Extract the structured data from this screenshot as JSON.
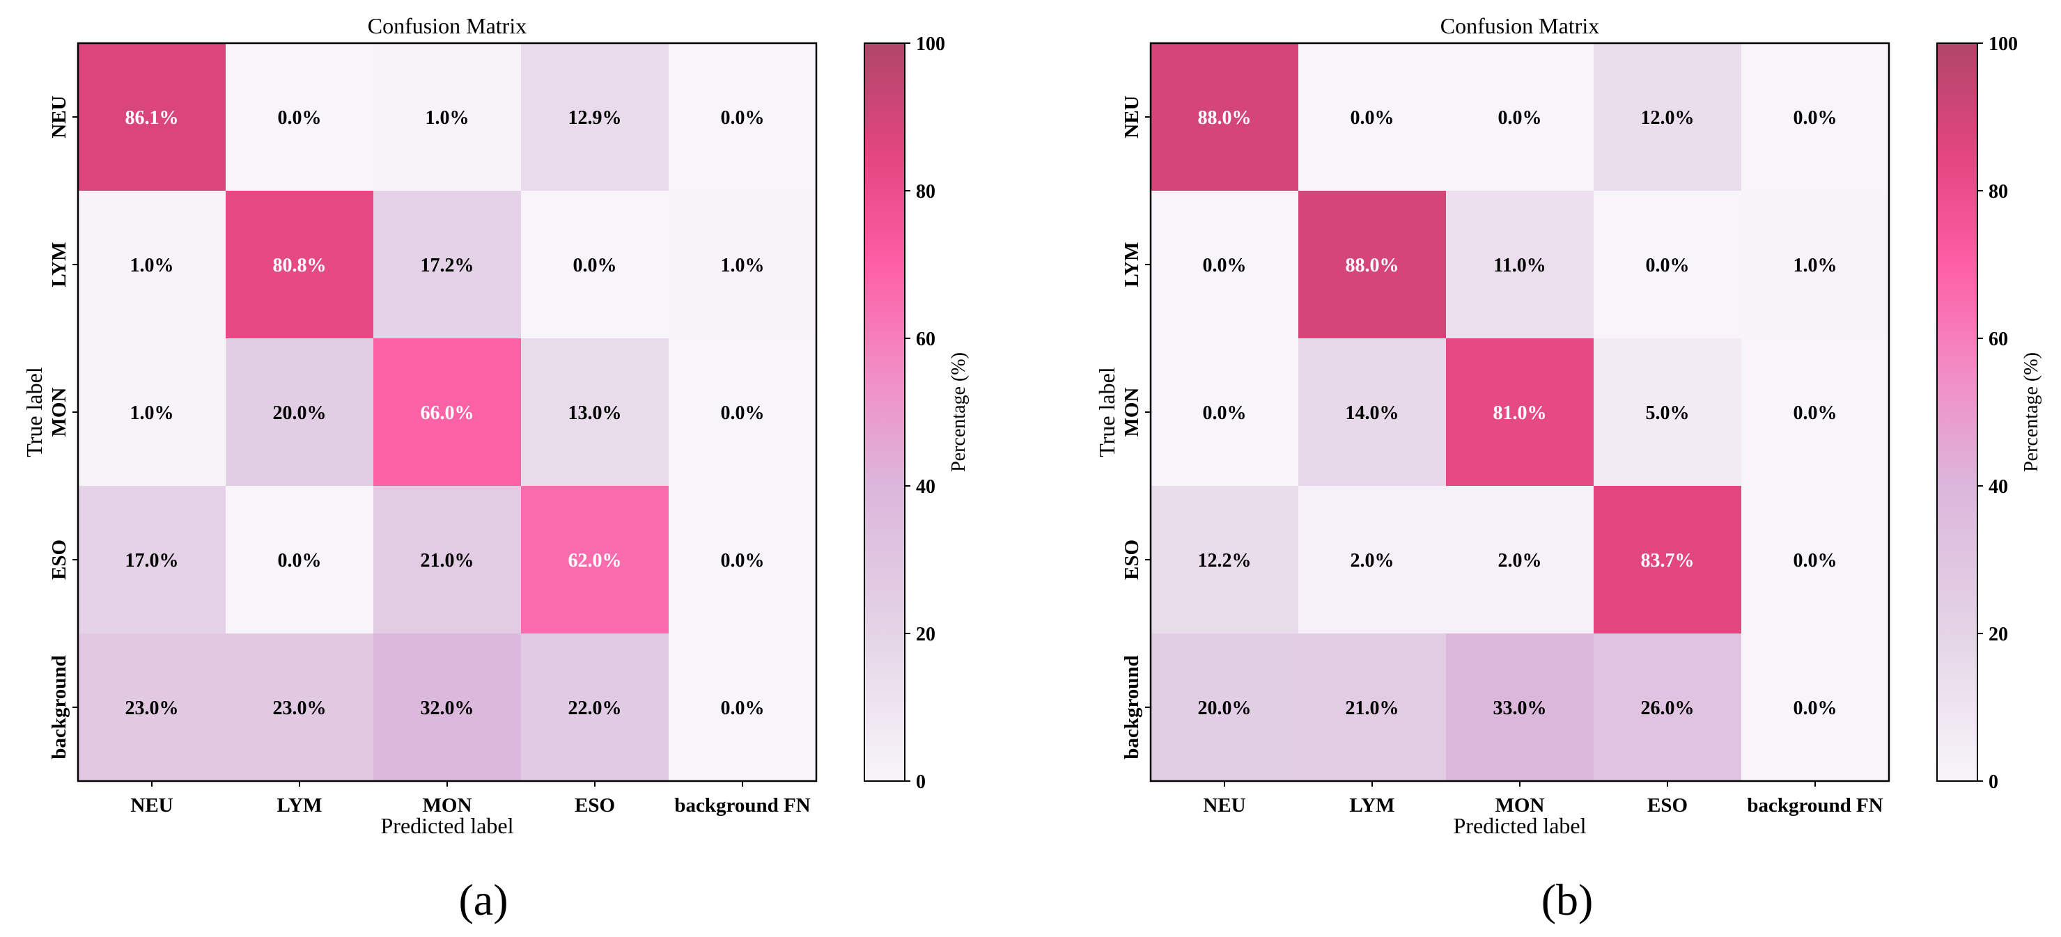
{
  "chart_data": [
    {
      "type": "heatmap",
      "panel_label": "(a)",
      "title": "Confusion Matrix",
      "xlabel": "Predicted label",
      "ylabel": "True label",
      "x_categories": [
        "NEU",
        "LYM",
        "MON",
        "ESO",
        "background FN"
      ],
      "y_categories": [
        "NEU",
        "LYM",
        "MON",
        "ESO",
        "background"
      ],
      "values": [
        [
          86.1,
          0.0,
          1.0,
          12.9,
          0.0
        ],
        [
          1.0,
          80.8,
          17.2,
          0.0,
          1.0
        ],
        [
          1.0,
          20.0,
          66.0,
          13.0,
          0.0
        ],
        [
          17.0,
          0.0,
          21.0,
          62.0,
          0.0
        ],
        [
          23.0,
          23.0,
          32.0,
          22.0,
          0.0
        ]
      ],
      "cell_labels": [
        [
          "86.1%",
          "0.0%",
          "1.0%",
          "12.9%",
          "0.0%"
        ],
        [
          "1.0%",
          "80.8%",
          "17.2%",
          "0.0%",
          "1.0%"
        ],
        [
          "1.0%",
          "20.0%",
          "66.0%",
          "13.0%",
          "0.0%"
        ],
        [
          "17.0%",
          "0.0%",
          "21.0%",
          "62.0%",
          "0.0%"
        ],
        [
          "23.0%",
          "23.0%",
          "32.0%",
          "22.0%",
          "0.0%"
        ]
      ],
      "colorbar": {
        "label": "Percentage (%)",
        "range": [
          0,
          100
        ],
        "ticks": [
          "0",
          "20",
          "40",
          "60",
          "80",
          "100"
        ]
      }
    },
    {
      "type": "heatmap",
      "panel_label": "(b)",
      "title": "Confusion Matrix",
      "xlabel": "Predicted label",
      "ylabel": "True label",
      "x_categories": [
        "NEU",
        "LYM",
        "MON",
        "ESO",
        "background FN"
      ],
      "y_categories": [
        "NEU",
        "LYM",
        "MON",
        "ESO",
        "background"
      ],
      "values": [
        [
          88.0,
          0.0,
          0.0,
          12.0,
          0.0
        ],
        [
          0.0,
          88.0,
          11.0,
          0.0,
          1.0
        ],
        [
          0.0,
          14.0,
          81.0,
          5.0,
          0.0
        ],
        [
          12.2,
          2.0,
          2.0,
          83.7,
          0.0
        ],
        [
          20.0,
          21.0,
          33.0,
          26.0,
          0.0
        ]
      ],
      "cell_labels": [
        [
          "88.0%",
          "0.0%",
          "0.0%",
          "12.0%",
          "0.0%"
        ],
        [
          "0.0%",
          "88.0%",
          "11.0%",
          "0.0%",
          "1.0%"
        ],
        [
          "0.0%",
          "14.0%",
          "81.0%",
          "5.0%",
          "0.0%"
        ],
        [
          "12.2%",
          "2.0%",
          "2.0%",
          "83.7%",
          "0.0%"
        ],
        [
          "20.0%",
          "21.0%",
          "33.0%",
          "26.0%",
          "0.0%"
        ]
      ],
      "colorbar": {
        "label": "Percentage (%)",
        "range": [
          0,
          100
        ],
        "ticks": [
          "0",
          "20",
          "40",
          "60",
          "80",
          "100"
        ]
      }
    }
  ],
  "colormap": {
    "stops": [
      "#f8f5fa",
      "#e4d4e6",
      "#dcb6dc",
      "#f28dc6",
      "#fd5fa5",
      "#e2467f",
      "#b04669"
    ],
    "text_dark": "#000000",
    "text_light": "#ffffff"
  }
}
